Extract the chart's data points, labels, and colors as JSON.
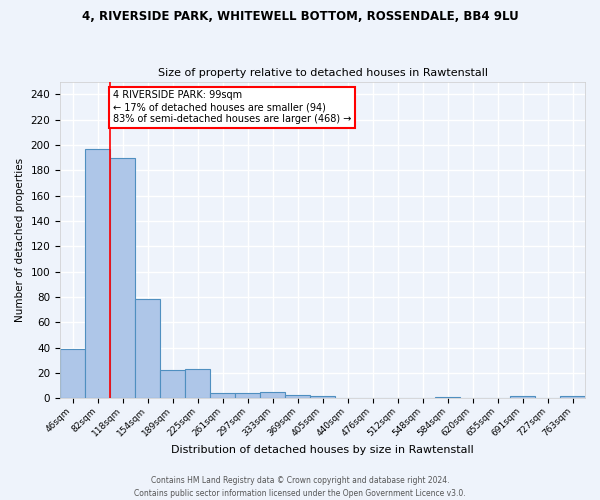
{
  "title": "4, RIVERSIDE PARK, WHITEWELL BOTTOM, ROSSENDALE, BB4 9LU",
  "subtitle": "Size of property relative to detached houses in Rawtenstall",
  "xlabel": "Distribution of detached houses by size in Rawtenstall",
  "ylabel": "Number of detached properties",
  "footnote1": "Contains HM Land Registry data © Crown copyright and database right 2024.",
  "footnote2": "Contains public sector information licensed under the Open Government Licence v3.0.",
  "bar_labels": [
    "46sqm",
    "82sqm",
    "118sqm",
    "154sqm",
    "189sqm",
    "225sqm",
    "261sqm",
    "297sqm",
    "333sqm",
    "369sqm",
    "405sqm",
    "440sqm",
    "476sqm",
    "512sqm",
    "548sqm",
    "584sqm",
    "620sqm",
    "655sqm",
    "691sqm",
    "727sqm",
    "763sqm"
  ],
  "bar_values": [
    39,
    197,
    190,
    78,
    22,
    23,
    4,
    4,
    5,
    3,
    2,
    0,
    0,
    0,
    0,
    1,
    0,
    0,
    2,
    0,
    2
  ],
  "bar_color": "#aec6e8",
  "bar_edge_color": "#4f8fc0",
  "ylim": [
    0,
    250
  ],
  "yticks": [
    0,
    20,
    40,
    60,
    80,
    100,
    120,
    140,
    160,
    180,
    200,
    220,
    240
  ],
  "redline_x": 1.5,
  "annotation_text": "4 RIVERSIDE PARK: 99sqm\n← 17% of detached houses are smaller (94)\n83% of semi-detached houses are larger (468) →",
  "annotation_box_color": "white",
  "annotation_box_edge_color": "red",
  "redline_color": "red",
  "background_color": "#eef3fb",
  "grid_color": "white"
}
